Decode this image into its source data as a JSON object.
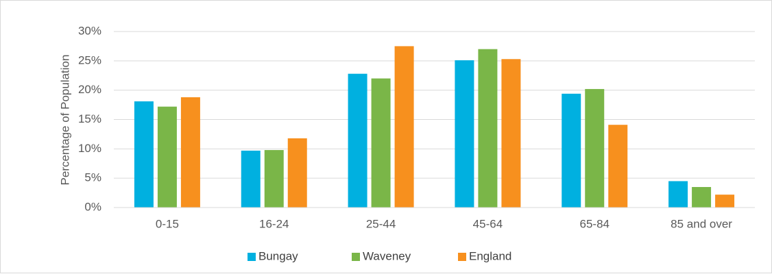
{
  "chart_data": {
    "type": "bar",
    "title": "",
    "xlabel": "",
    "ylabel": "Percentage of Population",
    "categories": [
      "0-15",
      "16-24",
      "25-44",
      "45-64",
      "65-84",
      "85 and over"
    ],
    "series": [
      {
        "name": "Bungay",
        "color": "#00b0e0",
        "values": [
          18.1,
          9.7,
          22.8,
          25.1,
          19.4,
          4.5
        ]
      },
      {
        "name": "Waveney",
        "color": "#7ab648",
        "values": [
          17.2,
          9.8,
          22.0,
          27.0,
          20.2,
          3.5
        ]
      },
      {
        "name": "England",
        "color": "#f7901e",
        "values": [
          18.8,
          11.8,
          27.5,
          25.3,
          14.1,
          2.2
        ]
      }
    ],
    "ylim": [
      0,
      30
    ],
    "yticks": [
      0,
      5,
      10,
      15,
      20,
      25,
      30
    ],
    "ytick_labels": [
      "0%",
      "5%",
      "10%",
      "15%",
      "20%",
      "25%",
      "30%"
    ],
    "grid": true,
    "legend_position": "bottom"
  }
}
